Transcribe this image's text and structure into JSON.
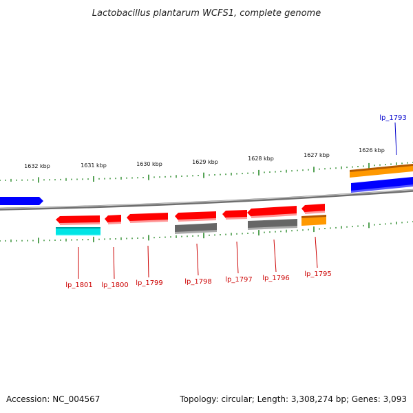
{
  "title": "Lactobacillus plantarum WCFS1, complete genome",
  "footer": {
    "accession": "Accession: NC_004567",
    "summary": "Topology: circular; Length: 3,308,274 bp; Genes: 3,093"
  },
  "scale_labels": [
    "1632 kbp",
    "1631 kbp",
    "1630 kbp",
    "1629 kbp",
    "1628 kbp",
    "1627 kbp",
    "1626 kbp"
  ],
  "gene_labels": [
    {
      "text": "lp_1793",
      "color": "#0000cc"
    },
    {
      "text": "lp_1801",
      "color": "#cc0000"
    },
    {
      "text": "lp_1800",
      "color": "#cc0000"
    },
    {
      "text": "lp_1799",
      "color": "#cc0000"
    },
    {
      "text": "lp_1798",
      "color": "#cc0000"
    },
    {
      "text": "lp_1797",
      "color": "#cc0000"
    },
    {
      "text": "lp_1796",
      "color": "#cc0000"
    },
    {
      "text": "lp_1795",
      "color": "#cc0000"
    }
  ],
  "colors": {
    "backbone": "#8a8a8a",
    "ticks": "#2a8a2a",
    "cds_red": "#ff0000",
    "cds_blue": "#0000ff",
    "cds_orange": "#ff9900",
    "cds_gray": "#666666",
    "cds_cyan": "#00e5e5"
  }
}
